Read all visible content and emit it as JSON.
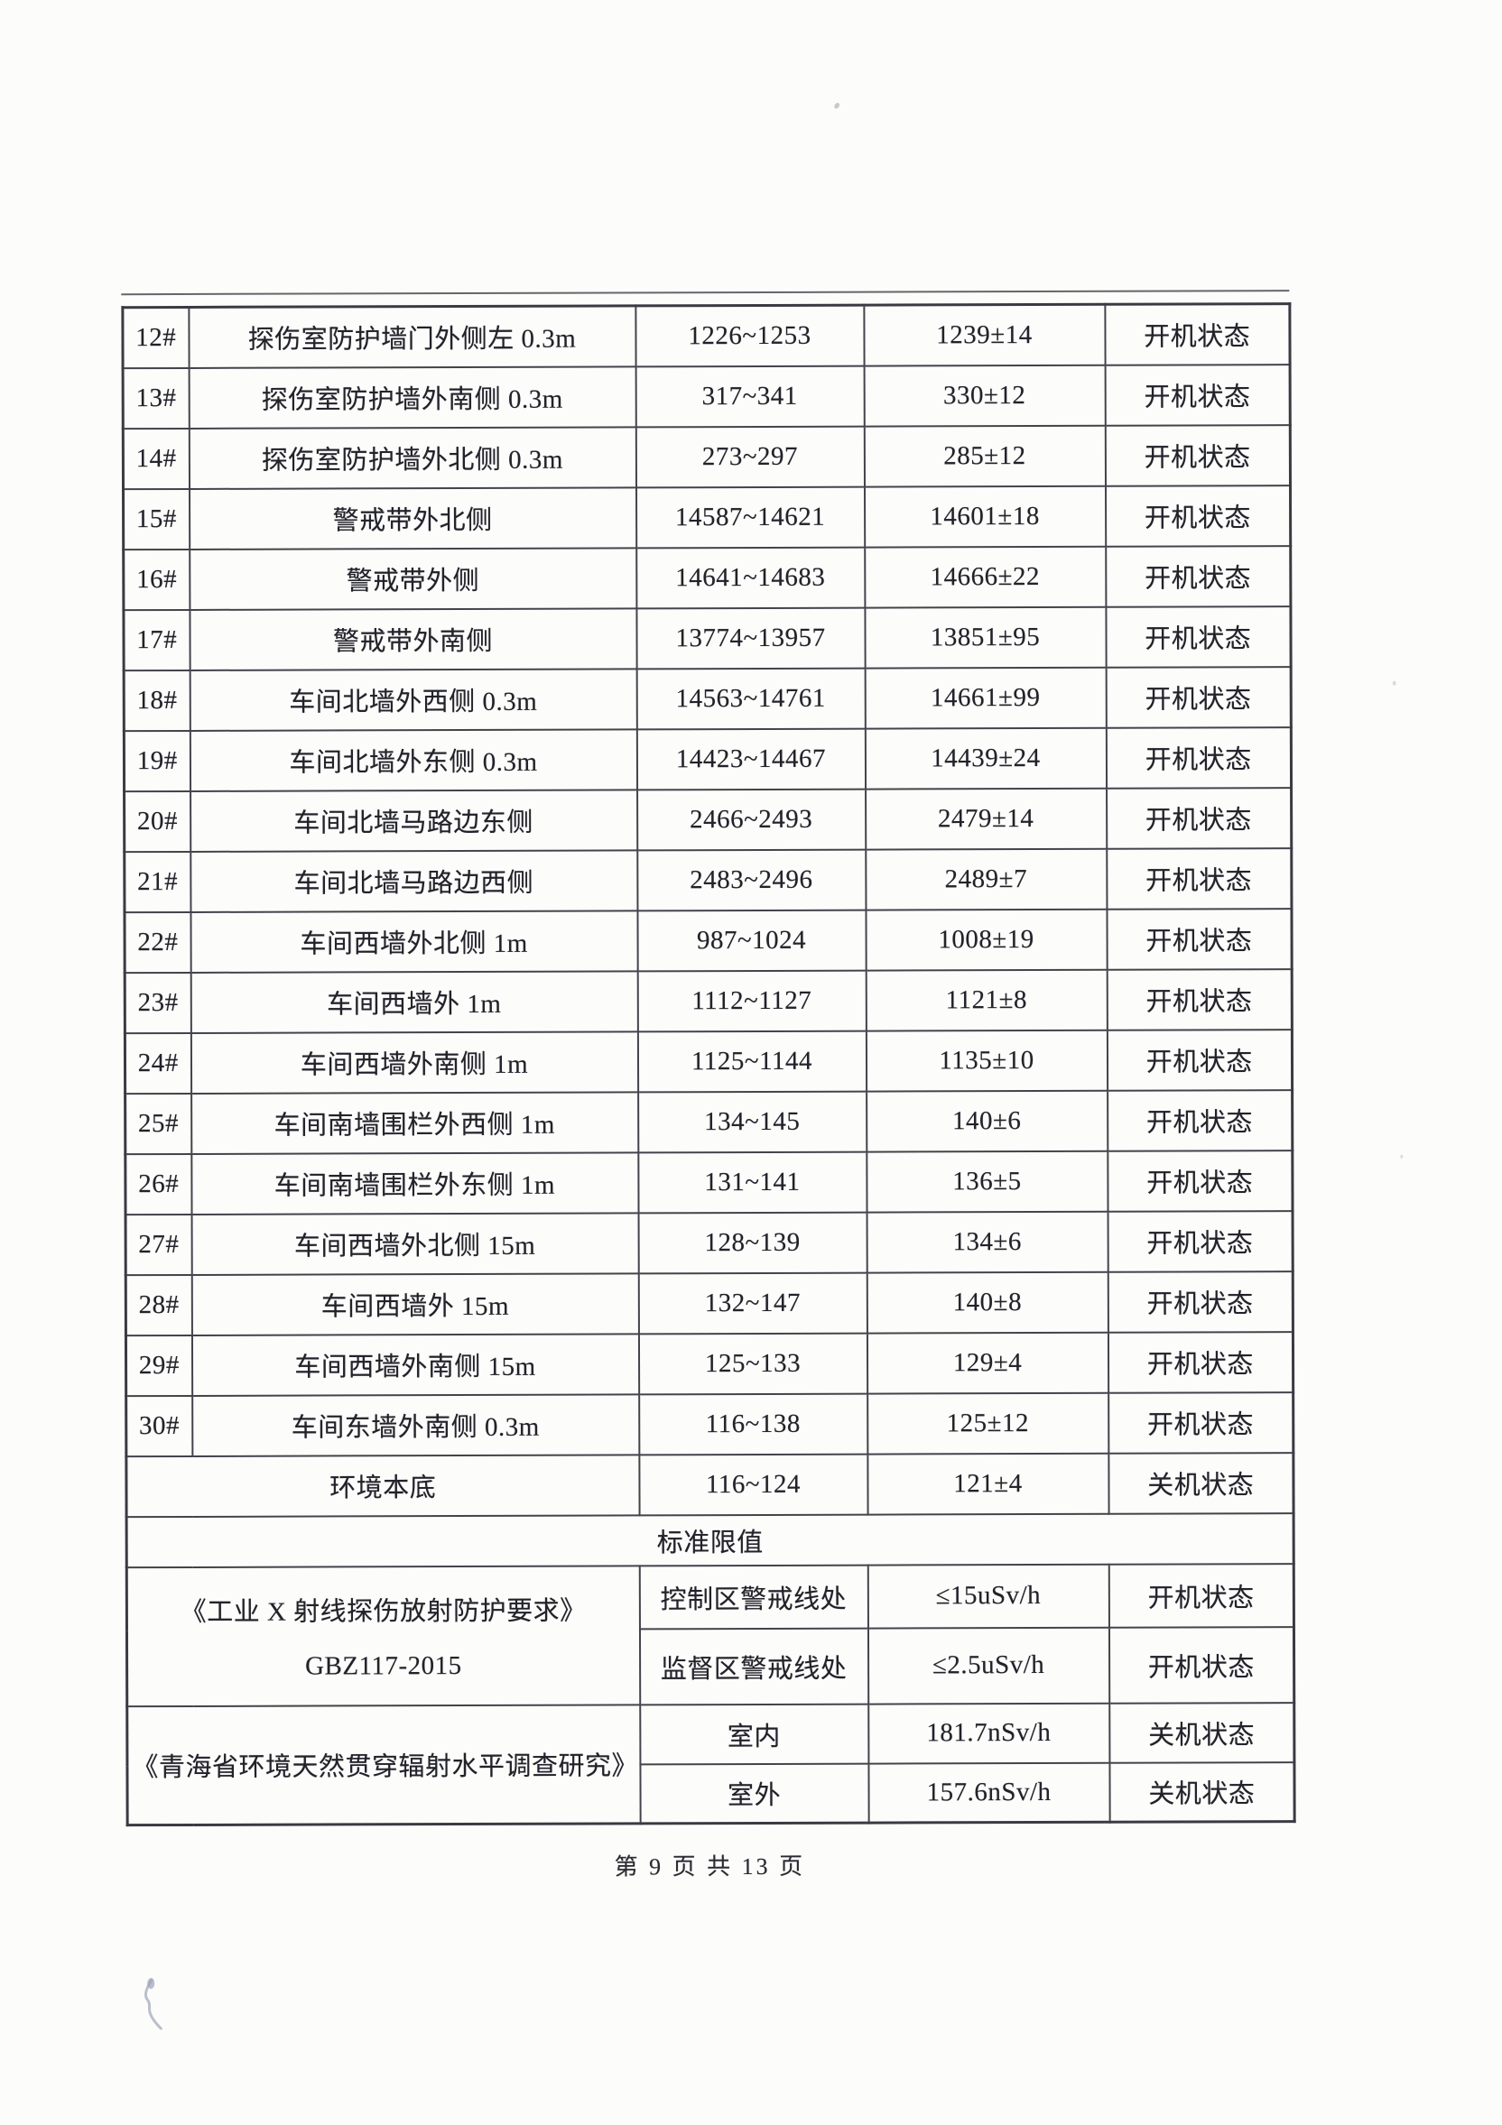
{
  "page": {
    "footer": "第 9 页 共 13 页"
  },
  "colors": {
    "paper": "#fcfcfb",
    "ink": "#22222a",
    "table_border": "#43434b",
    "pen_mark": "#8f96ad"
  },
  "table": {
    "rows": [
      {
        "no": "12#",
        "location": "探伤室防护墙门外侧左 0.3m",
        "range": "1226~1253",
        "mean": "1239±14",
        "status": "开机状态"
      },
      {
        "no": "13#",
        "location": "探伤室防护墙外南侧 0.3m",
        "range": "317~341",
        "mean": "330±12",
        "status": "开机状态"
      },
      {
        "no": "14#",
        "location": "探伤室防护墙外北侧 0.3m",
        "range": "273~297",
        "mean": "285±12",
        "status": "开机状态"
      },
      {
        "no": "15#",
        "location": "警戒带外北侧",
        "range": "14587~14621",
        "mean": "14601±18",
        "status": "开机状态"
      },
      {
        "no": "16#",
        "location": "警戒带外侧",
        "range": "14641~14683",
        "mean": "14666±22",
        "status": "开机状态"
      },
      {
        "no": "17#",
        "location": "警戒带外南侧",
        "range": "13774~13957",
        "mean": "13851±95",
        "status": "开机状态"
      },
      {
        "no": "18#",
        "location": "车间北墙外西侧 0.3m",
        "range": "14563~14761",
        "mean": "14661±99",
        "status": "开机状态"
      },
      {
        "no": "19#",
        "location": "车间北墙外东侧 0.3m",
        "range": "14423~14467",
        "mean": "14439±24",
        "status": "开机状态"
      },
      {
        "no": "20#",
        "location": "车间北墙马路边东侧",
        "range": "2466~2493",
        "mean": "2479±14",
        "status": "开机状态"
      },
      {
        "no": "21#",
        "location": "车间北墙马路边西侧",
        "range": "2483~2496",
        "mean": "2489±7",
        "status": "开机状态"
      },
      {
        "no": "22#",
        "location": "车间西墙外北侧 1m",
        "range": "987~1024",
        "mean": "1008±19",
        "status": "开机状态"
      },
      {
        "no": "23#",
        "location": "车间西墙外 1m",
        "range": "1112~1127",
        "mean": "1121±8",
        "status": "开机状态"
      },
      {
        "no": "24#",
        "location": "车间西墙外南侧 1m",
        "range": "1125~1144",
        "mean": "1135±10",
        "status": "开机状态"
      },
      {
        "no": "25#",
        "location": "车间南墙围栏外西侧 1m",
        "range": "134~145",
        "mean": "140±6",
        "status": "开机状态"
      },
      {
        "no": "26#",
        "location": "车间南墙围栏外东侧 1m",
        "range": "131~141",
        "mean": "136±5",
        "status": "开机状态"
      },
      {
        "no": "27#",
        "location": "车间西墙外北侧 15m",
        "range": "128~139",
        "mean": "134±6",
        "status": "开机状态"
      },
      {
        "no": "28#",
        "location": "车间西墙外 15m",
        "range": "132~147",
        "mean": "140±8",
        "status": "开机状态"
      },
      {
        "no": "29#",
        "location": "车间西墙外南侧 15m",
        "range": "125~133",
        "mean": "129±4",
        "status": "开机状态"
      },
      {
        "no": "30#",
        "location": "车间东墙外南侧 0.3m",
        "range": "116~138",
        "mean": "125±12",
        "status": "开机状态"
      },
      {
        "no": "",
        "location": "环境本底",
        "range": "116~124",
        "mean": "121±4",
        "status": "关机状态"
      }
    ],
    "limits_header": "标准限值",
    "limits": [
      {
        "ref_lines": [
          "《工业 X 射线探伤放射防护要求》",
          "GBZ117-2015"
        ],
        "rows": [
          {
            "place": "控制区警戒线处",
            "value": "≤15uSv/h",
            "status": "开机状态"
          },
          {
            "place": "监督区警戒线处",
            "value": "≤2.5uSv/h",
            "status": "开机状态"
          }
        ]
      },
      {
        "ref_lines": [
          "《青海省环境天然贯穿辐射水平调查研究》"
        ],
        "rows": [
          {
            "place": "室内",
            "value": "181.7nSv/h",
            "status": "关机状态"
          },
          {
            "place": "室外",
            "value": "157.6nSv/h",
            "status": "关机状态"
          }
        ]
      }
    ]
  }
}
